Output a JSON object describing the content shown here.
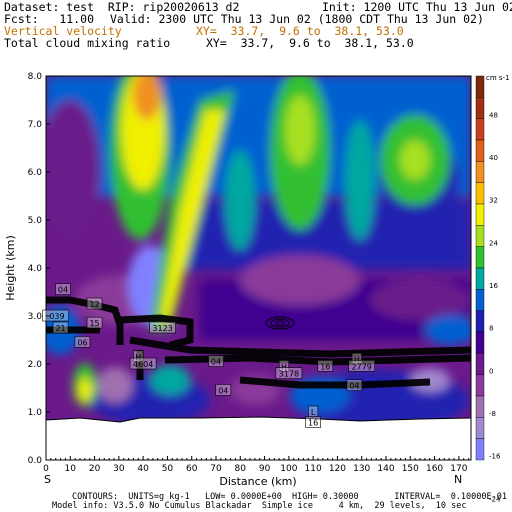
{
  "header": {
    "dataset": "Dataset: test  RIP: rip20020613 d2",
    "init": "Init: 1200 UTC Thu 13 Jun 02",
    "fcst": "Fcst:   11.00",
    "valid": "Valid: 2300 UTC Thu 13 Jun 02 (1800 CDT Thu 13 Jun 02)",
    "field1": "Vertical velocity",
    "xy1": "XY=  33.7,  9.6 to  38.1, 53.0",
    "field2": "Total cloud mixing ratio",
    "xy2": "XY=  33.7,  9.6 to  38.1, 53.0"
  },
  "footer": {
    "line1": "CONTOURS:  UNITS=g kg-1   LOW= 0.0000E+00  HIGH= 0.30000       INTERVAL=  0.10000E-01",
    "line2": "Model info: V3.5.0 No Cumulus Blackadar  Simple ice     4 km,  29 levels,  10 sec"
  },
  "colorbar": {
    "units": "cm s-1",
    "labels": [
      "48",
      "40",
      "32",
      "24",
      "16",
      "8",
      "0",
      "-8",
      "-16",
      "-24"
    ],
    "colors": [
      "#7b2a0c",
      "#a03010",
      "#c84020",
      "#e06018",
      "#f09020",
      "#f8c000",
      "#f0f000",
      "#a8e020",
      "#30c030",
      "#00a8a0",
      "#0060d0",
      "#2020b0",
      "#400090",
      "#6a1a8a",
      "#8a3a9a",
      "#a070b0",
      "#a088d0",
      "#8080ff"
    ]
  },
  "chart_data": {
    "type": "heatmap",
    "xlabel": "Distance (km)",
    "ylabel": "Height (km)",
    "xlim": [
      0,
      175
    ],
    "ylim": [
      0,
      8
    ],
    "xticks": [
      "0",
      "10",
      "20",
      "30",
      "40",
      "50",
      "60",
      "70",
      "80",
      "90",
      "100",
      "110",
      "120",
      "130",
      "140",
      "150",
      "160",
      "170"
    ],
    "yticks": [
      "0.0",
      "1.0",
      "2.0",
      "3.0",
      "4.0",
      "5.0",
      "6.0",
      "7.0",
      "8.0"
    ],
    "endpoint_left": "S",
    "endpoint_right": "N",
    "annotations": [
      {
        "text": "04",
        "x": 7,
        "y": 3.55
      },
      {
        "text": ".039",
        "x": 4,
        "y": 3.0
      },
      {
        "text": "21",
        "x": 6,
        "y": 2.75
      },
      {
        "text": "12",
        "x": 20,
        "y": 3.25
      },
      {
        "text": "15",
        "x": 20,
        "y": 2.85
      },
      {
        "text": "06",
        "x": 15,
        "y": 2.45
      },
      {
        "text": "H",
        "x": 38,
        "y": 2.15
      },
      {
        "text": "4604",
        "x": 40,
        "y": 2.0
      },
      {
        "text": "3123",
        "x": 48,
        "y": 2.75
      },
      {
        "text": "04",
        "x": 70,
        "y": 2.05
      },
      {
        "text": "04",
        "x": 73,
        "y": 1.45
      },
      {
        "text": "H",
        "x": 98,
        "y": 1.95
      },
      {
        "text": "3178",
        "x": 100,
        "y": 1.8
      },
      {
        "text": "16",
        "x": 115,
        "y": 1.95
      },
      {
        "text": "H",
        "x": 128,
        "y": 2.1
      },
      {
        "text": "2779",
        "x": 130,
        "y": 1.95
      },
      {
        "text": "04",
        "x": 127,
        "y": 1.55
      },
      {
        "text": "L",
        "x": 110,
        "y": 1.0
      },
      {
        "text": "16",
        "x": 110,
        "y": 0.78
      }
    ]
  }
}
